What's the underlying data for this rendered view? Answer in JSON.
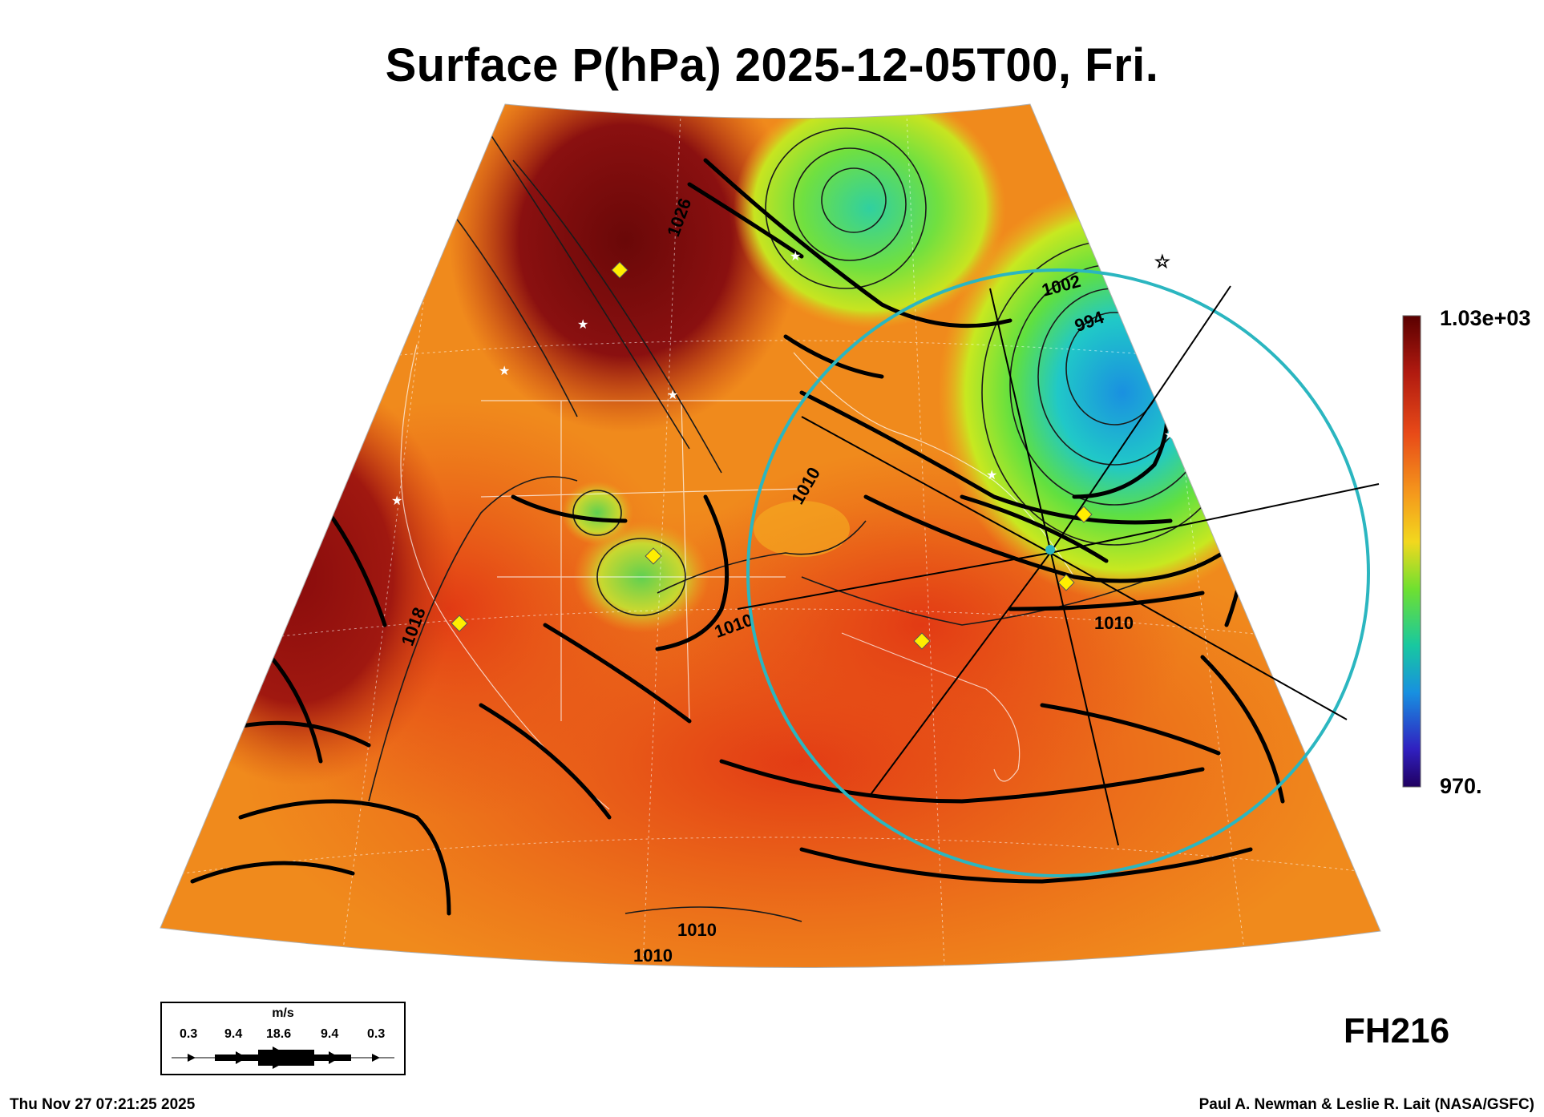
{
  "title": "Surface P(hPa) 2025-12-05T00, Fri.",
  "colorbar": {
    "max_label": "1.03e+03",
    "min_label": "970."
  },
  "forecast_hour": "FH216",
  "footer": {
    "timestamp": "Thu Nov 27 07:21:25 2025",
    "credit": "Paul A. Newman & Leslie R. Lait (NASA/GSFC)"
  },
  "wind_legend": {
    "unit": "m/s",
    "scale": [
      "0.3",
      "9.4",
      "18.6",
      "9.4",
      "0.3"
    ]
  },
  "contour_labels": [
    "1026",
    "1002",
    "994",
    "1018",
    "1010",
    "1010",
    "1010",
    "1010",
    "1010"
  ],
  "colors": {
    "high_pressure": "#7a0a0a",
    "mid_pressure": "#e8501a",
    "low_pressure": "#1ea0e6",
    "ring": "#2bb6c0"
  }
}
